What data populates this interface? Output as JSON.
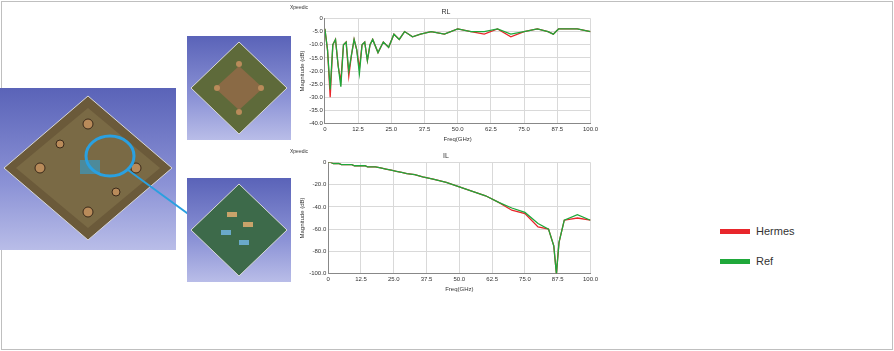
{
  "chart_data": [
    {
      "type": "line",
      "title": "RL",
      "annotation": "Xpeedic",
      "x_label": "Freq(GHz)",
      "y_label": "Magnitude (dB)",
      "grid": true,
      "x": [
        0,
        1,
        2,
        3,
        4,
        5,
        6,
        7,
        8,
        9,
        10,
        11,
        12,
        13,
        14,
        15,
        16,
        17,
        18,
        20,
        22,
        24,
        26,
        28,
        30,
        33,
        36,
        40,
        45,
        50,
        55,
        60,
        65,
        70,
        75,
        80,
        84,
        86,
        87,
        88,
        90,
        95,
        100
      ],
      "series": [
        {
          "name": "Hermes",
          "color": "#e8262b",
          "values": [
            -4,
            -12,
            -30,
            -10,
            -8,
            -18,
            -24,
            -10,
            -9,
            -22,
            -14,
            -8,
            -12,
            -19,
            -10,
            -9,
            -16,
            -10,
            -8,
            -13,
            -9,
            -11,
            -6,
            -8,
            -5,
            -7,
            -6,
            -5,
            -6,
            -4,
            -5,
            -6,
            -4,
            -7,
            -5,
            -4,
            -5,
            -6,
            -5,
            -4,
            -4,
            -4,
            -5
          ]
        },
        {
          "name": "Ref",
          "color": "#1fa83a",
          "values": [
            -4,
            -12,
            -27,
            -10,
            -8,
            -18,
            -26,
            -10,
            -9,
            -20,
            -14,
            -8,
            -12,
            -21,
            -10,
            -9,
            -16,
            -10,
            -8,
            -13,
            -9,
            -11,
            -6,
            -8,
            -5,
            -7,
            -6,
            -5,
            -6,
            -4,
            -5,
            -5,
            -4,
            -6,
            -5,
            -4,
            -5,
            -6,
            -5,
            -4,
            -4,
            -4,
            -5
          ]
        }
      ],
      "xlim": [
        0,
        100
      ],
      "xticks": [
        0,
        12.5,
        {
          "value": 25,
          "label": "25.0"
        },
        37.5,
        {
          "value": 50,
          "label": "50.0"
        },
        62.5,
        {
          "value": 75,
          "label": "75.0"
        },
        87.5,
        {
          "value": 100,
          "label": "100.0"
        }
      ],
      "ylim": [
        -40,
        0
      ],
      "yticks": [
        {
          "value": -40,
          "label": "-40.0"
        },
        {
          "value": -35,
          "label": "-35.0"
        },
        {
          "value": -30,
          "label": "-30.0"
        },
        {
          "value": -25,
          "label": "-25.0"
        },
        {
          "value": -20,
          "label": "-20.0"
        },
        {
          "value": -15,
          "label": "-15.0"
        },
        {
          "value": -10,
          "label": "-10.0"
        },
        {
          "value": -5,
          "label": "-5.0"
        },
        0
      ]
    },
    {
      "type": "line",
      "title": "IL",
      "annotation": "Xpeedic",
      "x_label": "Freq(GHz)",
      "y_label": "Magnitude (dB)",
      "grid": true,
      "x": [
        0,
        1,
        2,
        3,
        4,
        5,
        6,
        7,
        8,
        9,
        10,
        11,
        12,
        13,
        14,
        15,
        16,
        17,
        18,
        20,
        22,
        24,
        26,
        28,
        30,
        33,
        36,
        40,
        45,
        50,
        55,
        60,
        65,
        70,
        75,
        80,
        84,
        86,
        87,
        88,
        90,
        95,
        100
      ],
      "series": [
        {
          "name": "Hermes",
          "color": "#e8262b",
          "values": [
            0,
            0,
            -1,
            -1,
            -1,
            -2,
            -2,
            -2,
            -2,
            -2,
            -3,
            -3,
            -3,
            -3,
            -3,
            -4,
            -4,
            -4,
            -4,
            -5,
            -6,
            -7,
            -8,
            -9,
            -10,
            -11,
            -13,
            -15,
            -18,
            -22,
            -26,
            -30,
            -36,
            -43,
            -46,
            -58,
            -60,
            -75,
            -100,
            -72,
            -52,
            -50,
            -52
          ]
        },
        {
          "name": "Ref",
          "color": "#1fa83a",
          "values": [
            0,
            0,
            -1,
            -1,
            -1,
            -2,
            -2,
            -2,
            -2,
            -2,
            -3,
            -3,
            -3,
            -3,
            -3,
            -4,
            -4,
            -4,
            -4,
            -5,
            -6,
            -7,
            -8,
            -9,
            -10,
            -11,
            -13,
            -15,
            -18,
            -22,
            -26,
            -30,
            -36,
            -41,
            -45,
            -55,
            -60,
            -75,
            -100,
            -72,
            -52,
            -47,
            -52
          ]
        }
      ],
      "xlim": [
        0,
        100
      ],
      "xticks": [
        0,
        12.5,
        {
          "value": 25,
          "label": "25.0"
        },
        37.5,
        {
          "value": 50,
          "label": "50.0"
        },
        62.5,
        {
          "value": 75,
          "label": "75.0"
        },
        87.5,
        {
          "value": 100,
          "label": "100.0"
        }
      ],
      "ylim": [
        -100,
        0
      ],
      "yticks": [
        {
          "value": -100,
          "label": "-100.0"
        },
        {
          "value": -80,
          "label": "-80.0"
        },
        {
          "value": -60,
          "label": "-60.0"
        },
        {
          "value": -40,
          "label": "-40.0"
        },
        {
          "value": -20,
          "label": "-20.0"
        },
        0
      ]
    }
  ]
}
